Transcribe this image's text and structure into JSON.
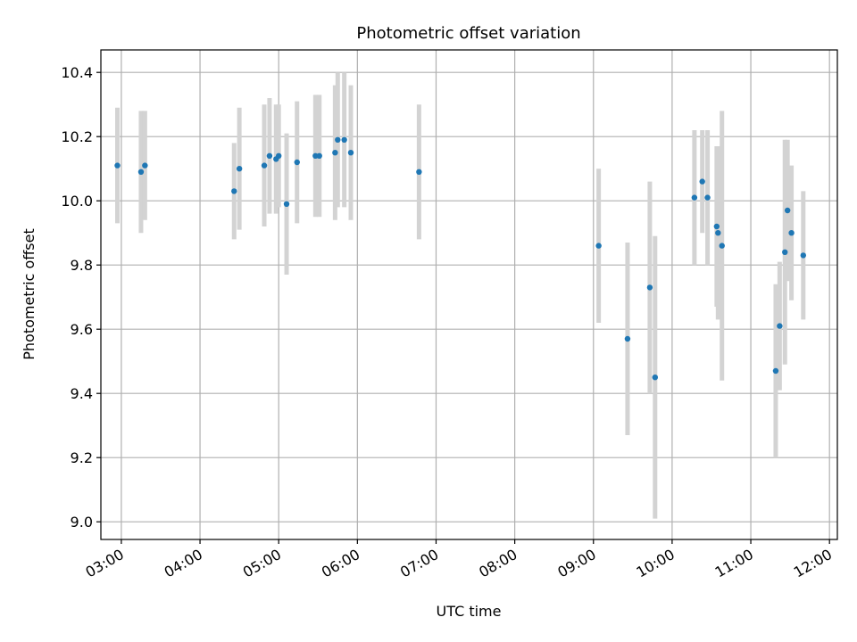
{
  "chart_data": {
    "type": "scatter",
    "title": "Photometric offset variation",
    "xlabel": "UTC time",
    "ylabel": "Photometric offset",
    "xlim": [
      2.74,
      12.1
    ],
    "ylim": [
      8.945,
      10.47
    ],
    "x_ticks": [
      3,
      4,
      5,
      6,
      7,
      8,
      9,
      10,
      11,
      12
    ],
    "x_tick_labels": [
      "03:00",
      "04:00",
      "05:00",
      "06:00",
      "07:00",
      "08:00",
      "09:00",
      "10:00",
      "11:00",
      "12:00"
    ],
    "y_ticks": [
      9.0,
      9.2,
      9.4,
      9.6,
      9.8,
      10.0,
      10.2,
      10.4
    ],
    "y_tick_labels": [
      "9.0",
      "9.2",
      "9.4",
      "9.6",
      "9.8",
      "10.0",
      "10.2",
      "10.4"
    ],
    "grid": true,
    "point_color": "#1f77b4",
    "errorbar_color": "#d3d3d3",
    "points": [
      {
        "t": "02:57",
        "y": 10.11,
        "err": 0.18
      },
      {
        "t": "03:15",
        "y": 10.09,
        "err": 0.19
      },
      {
        "t": "03:18",
        "y": 10.11,
        "err": 0.17
      },
      {
        "t": "04:26",
        "y": 10.03,
        "err": 0.15
      },
      {
        "t": "04:30",
        "y": 10.1,
        "err": 0.19
      },
      {
        "t": "04:49",
        "y": 10.11,
        "err": 0.19
      },
      {
        "t": "04:53",
        "y": 10.14,
        "err": 0.18
      },
      {
        "t": "04:58",
        "y": 10.13,
        "err": 0.17
      },
      {
        "t": "05:00",
        "y": 10.14,
        "err": 0.16
      },
      {
        "t": "05:06",
        "y": 9.99,
        "err": 0.22
      },
      {
        "t": "05:14",
        "y": 10.12,
        "err": 0.19
      },
      {
        "t": "05:28",
        "y": 10.14,
        "err": 0.19
      },
      {
        "t": "05:31",
        "y": 10.14,
        "err": 0.19
      },
      {
        "t": "05:43",
        "y": 10.15,
        "err": 0.21
      },
      {
        "t": "05:45",
        "y": 10.19,
        "err": 0.21
      },
      {
        "t": "05:50",
        "y": 10.19,
        "err": 0.21
      },
      {
        "t": "05:55",
        "y": 10.15,
        "err": 0.21
      },
      {
        "t": "06:47",
        "y": 10.09,
        "err": 0.21
      },
      {
        "t": "09:04",
        "y": 9.86,
        "err": 0.24
      },
      {
        "t": "09:26",
        "y": 9.57,
        "err": 0.3
      },
      {
        "t": "09:43",
        "y": 9.73,
        "err": 0.33
      },
      {
        "t": "09:47",
        "y": 9.45,
        "err": 0.44
      },
      {
        "t": "10:17",
        "y": 10.01,
        "err": 0.21
      },
      {
        "t": "10:23",
        "y": 10.06,
        "err": 0.16
      },
      {
        "t": "10:27",
        "y": 10.01,
        "err": 0.21
      },
      {
        "t": "10:34",
        "y": 9.92,
        "err": 0.25
      },
      {
        "t": "10:35",
        "y": 9.9,
        "err": 0.27
      },
      {
        "t": "10:38",
        "y": 9.86,
        "err": 0.42
      },
      {
        "t": "11:19",
        "y": 9.47,
        "err": 0.27
      },
      {
        "t": "11:22",
        "y": 9.61,
        "err": 0.2
      },
      {
        "t": "11:26",
        "y": 9.84,
        "err": 0.35
      },
      {
        "t": "11:28",
        "y": 9.97,
        "err": 0.22
      },
      {
        "t": "11:31",
        "y": 9.9,
        "err": 0.21
      },
      {
        "t": "11:40",
        "y": 9.83,
        "err": 0.2
      }
    ]
  }
}
